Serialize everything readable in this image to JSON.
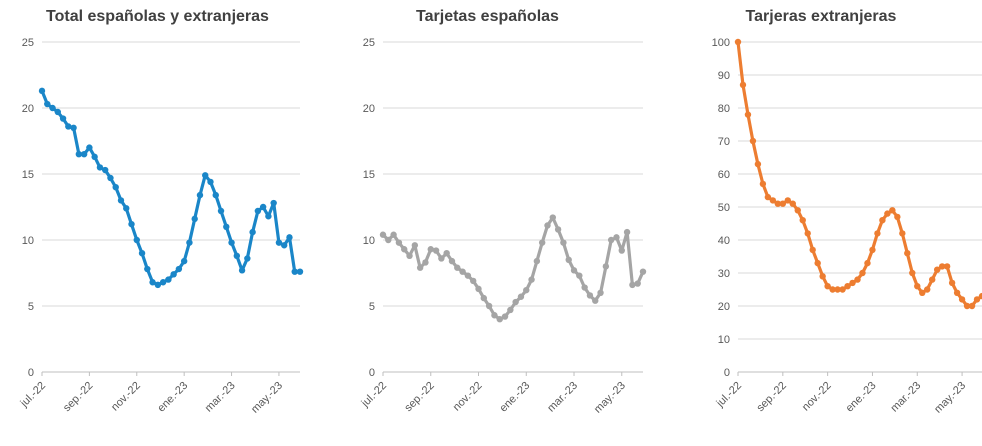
{
  "chart_data": [
    {
      "type": "line",
      "title": "Total españolas y extranjeras",
      "color": "#1a86c8",
      "ylim": [
        0,
        25
      ],
      "yticks": [
        0,
        5,
        10,
        15,
        20,
        25
      ],
      "xtick_labels": [
        "jul.-22",
        "sep.-22",
        "nov.-22",
        "ene.-23",
        "mar.-23",
        "may.-23"
      ],
      "xtick_index": [
        0,
        9,
        18,
        27,
        36,
        45
      ],
      "grid": true,
      "values": [
        21.3,
        20.3,
        20.0,
        19.7,
        19.2,
        18.6,
        18.5,
        16.5,
        16.5,
        17.0,
        16.3,
        15.5,
        15.3,
        14.7,
        14.0,
        13.0,
        12.4,
        11.2,
        10.0,
        9.0,
        7.8,
        6.8,
        6.6,
        6.8,
        7.0,
        7.4,
        7.8,
        8.4,
        9.8,
        11.6,
        13.4,
        14.9,
        14.4,
        13.4,
        12.2,
        11.0,
        9.8,
        8.8,
        7.7,
        8.6,
        10.6,
        12.2,
        12.5,
        11.8,
        12.8,
        9.8,
        9.6,
        10.2,
        7.6,
        7.6
      ]
    },
    {
      "type": "line",
      "title": "Tarjetas españolas",
      "color": "#a5a5a5",
      "ylim": [
        0,
        25
      ],
      "yticks": [
        0,
        5,
        10,
        15,
        20,
        25
      ],
      "xtick_labels": [
        "jul.-22",
        "sep.-22",
        "nov.-22",
        "ene.-23",
        "mar.-23",
        "may.-23"
      ],
      "xtick_index": [
        0,
        9,
        18,
        27,
        36,
        45
      ],
      "grid": true,
      "values": [
        10.4,
        10.0,
        10.4,
        9.8,
        9.3,
        8.8,
        9.6,
        7.9,
        8.3,
        9.3,
        9.2,
        8.6,
        9.0,
        8.4,
        7.9,
        7.6,
        7.3,
        6.9,
        6.3,
        5.6,
        5.0,
        4.3,
        4.0,
        4.2,
        4.7,
        5.3,
        5.7,
        6.2,
        7.0,
        8.4,
        9.8,
        11.1,
        11.7,
        10.8,
        9.8,
        8.5,
        7.7,
        7.3,
        6.4,
        5.8,
        5.4,
        6.0,
        8.0,
        10.0,
        10.2,
        9.2,
        10.6,
        6.6,
        6.7,
        7.6
      ]
    },
    {
      "type": "line",
      "title": "Tarjeras extranjeras",
      "color": "#ed7d31",
      "ylim": [
        0,
        100
      ],
      "yticks": [
        0,
        10,
        20,
        30,
        40,
        50,
        60,
        70,
        80,
        90,
        100
      ],
      "xtick_labels": [
        "jul.-22",
        "sep.-22",
        "nov.-22",
        "ene.-23",
        "mar.-23",
        "may.-23"
      ],
      "xtick_index": [
        0,
        9,
        18,
        27,
        36,
        45
      ],
      "grid": true,
      "values": [
        100,
        87,
        78,
        70,
        63,
        57,
        53,
        52,
        51,
        51,
        52,
        51,
        49,
        46,
        42,
        37,
        33,
        29,
        26,
        25,
        25,
        25,
        26,
        27,
        28,
        30,
        33,
        37,
        42,
        46,
        48,
        49,
        47,
        42,
        36,
        30,
        26,
        24,
        25,
        28,
        31,
        32,
        32,
        27,
        24,
        22,
        20,
        20,
        22,
        23
      ]
    }
  ]
}
